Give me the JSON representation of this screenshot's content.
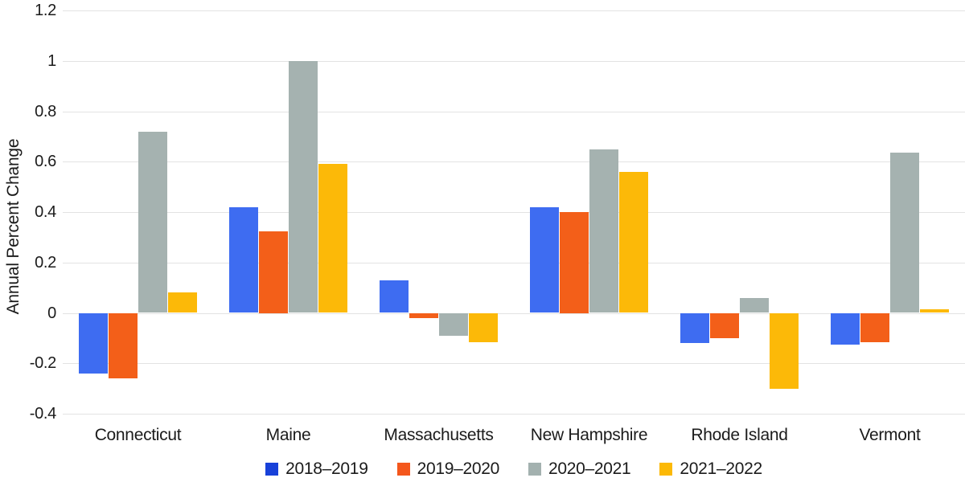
{
  "chart_data": {
    "type": "bar",
    "title": "",
    "xlabel": "",
    "ylabel": "Annual Percent Change",
    "ylim": [
      -0.4,
      1.2
    ],
    "ytick_step": 0.2,
    "ytick_labels": [
      "-0.4",
      "-0.2",
      "0",
      "0.2",
      "0.4",
      "0.6",
      "0.8",
      "1",
      "1.2"
    ],
    "grid": true,
    "legend_position": "bottom",
    "categories": [
      "Connecticut",
      "Maine",
      "Massachusetts",
      "New Hampshire",
      "Rhode Island",
      "Vermont"
    ],
    "series": [
      {
        "name": "2018–2019",
        "color": "#3e6cf1",
        "legend_color": "#1841d9",
        "values": [
          -0.24,
          0.42,
          0.13,
          0.42,
          -0.12,
          -0.125
        ]
      },
      {
        "name": "2019–2020",
        "color": "#f35f19",
        "legend_color": "#f4571c",
        "values": [
          -0.26,
          0.325,
          -0.02,
          0.4,
          -0.1,
          -0.115
        ]
      },
      {
        "name": "2020–2021",
        "color": "#a5b2b0",
        "legend_color": "#a3b1af",
        "values": [
          0.72,
          1.0,
          -0.09,
          0.65,
          0.06,
          0.635
        ]
      },
      {
        "name": "2021–2022",
        "color": "#fcb908",
        "legend_color": "#fcb906",
        "values": [
          0.08,
          0.59,
          -0.115,
          0.56,
          -0.3,
          0.015
        ]
      }
    ]
  },
  "colors": {
    "background": "#ffffff",
    "gridline": "#e3e3e3",
    "text": "#1b1b1b"
  }
}
